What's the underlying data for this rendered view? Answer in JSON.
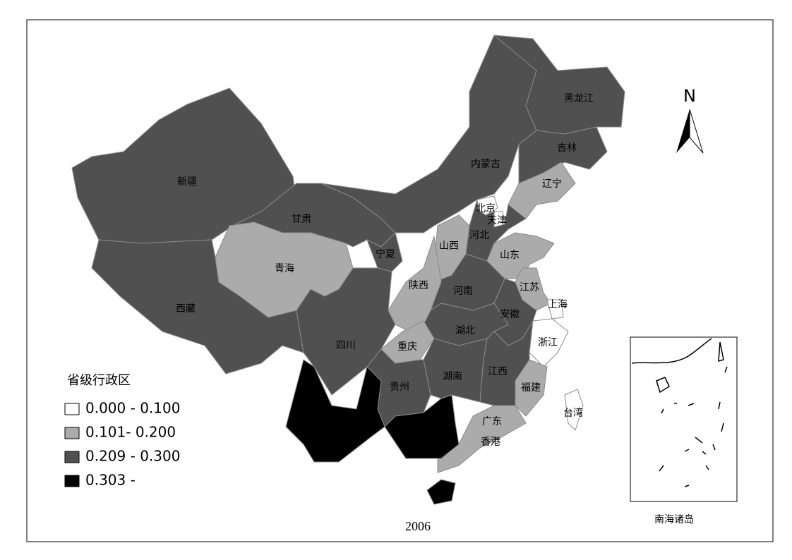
{
  "map": {
    "regions": [
      {
        "label": "新疆",
        "color": "#505050"
      },
      {
        "label": "西藏",
        "color": "#505050"
      },
      {
        "label": "甘肃",
        "color": "#505050"
      },
      {
        "label": "内蒙古",
        "color": "#505050"
      },
      {
        "label": "黑龙江",
        "color": "#505050"
      },
      {
        "label": "吉林",
        "color": "#505050"
      },
      {
        "label": "宁夏",
        "color": "#505050"
      },
      {
        "label": "河北",
        "color": "#505050"
      },
      {
        "label": "河南",
        "color": "#505050"
      },
      {
        "label": "四川",
        "color": "#505050"
      },
      {
        "label": "湖北",
        "color": "#505050"
      },
      {
        "label": "安徽",
        "color": "#505050"
      },
      {
        "label": "湖南",
        "color": "#505050"
      },
      {
        "label": "江西",
        "color": "#505050"
      },
      {
        "label": "贵州",
        "color": "#505050"
      },
      {
        "label": "青海",
        "color": "#ababab"
      },
      {
        "label": "辽宁",
        "color": "#ababab"
      },
      {
        "label": "北京",
        "color": "#ffffff"
      },
      {
        "label": "天津",
        "color": "#ffffff"
      },
      {
        "label": "山西",
        "color": "#ababab"
      },
      {
        "label": "山东",
        "color": "#ababab"
      },
      {
        "label": "陕西",
        "color": "#ababab"
      },
      {
        "label": "江苏",
        "color": "#ababab"
      },
      {
        "label": "上海",
        "color": "#ffffff"
      },
      {
        "label": "浙江",
        "color": "#ffffff"
      },
      {
        "label": "重庆",
        "color": "#ababab"
      },
      {
        "label": "福建",
        "color": "#ababab"
      },
      {
        "label": "广东",
        "color": "#ababab"
      },
      {
        "label": "香港",
        "color": "#ababab"
      },
      {
        "label": "台湾",
        "color": "#ffffff"
      },
      {
        "label": null,
        "color": "#000000"
      },
      {
        "label": null,
        "color": "#000000"
      },
      {
        "label": null,
        "color": "#000000"
      }
    ],
    "legend": {
      "title": "省级行政区",
      "items": [
        {
          "label": "0.000 - 0.100",
          "color": "#ffffff"
        },
        {
          "label": "0.101- 0.200",
          "color": "#ababab"
        },
        {
          "label": "0.209 - 0.300",
          "color": "#505050"
        },
        {
          "label": "0.303 -",
          "color": "#000000"
        }
      ]
    },
    "year": "2006",
    "north": "N",
    "inset_label": "南海诸岛"
  }
}
